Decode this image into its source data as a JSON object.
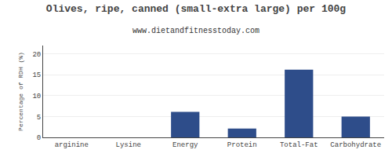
{
  "chart_data": {
    "type": "bar",
    "title": "Olives, ripe, canned (small-extra large) per 100g",
    "subtitle": "www.dietandfitnesstoday.com",
    "categories": [
      "arginine",
      "Lysine",
      "Energy",
      "Protein",
      "Total-Fat",
      "Carbohydrate"
    ],
    "values": [
      0.0,
      0.0,
      6.1,
      2.1,
      16.2,
      5.0
    ],
    "color": "#2e4d8a",
    "ylabel": "Percentage of RDH (%)",
    "ylim": [
      0,
      22
    ],
    "yticks": [
      0,
      5,
      10,
      15,
      20
    ],
    "grid": true
  }
}
